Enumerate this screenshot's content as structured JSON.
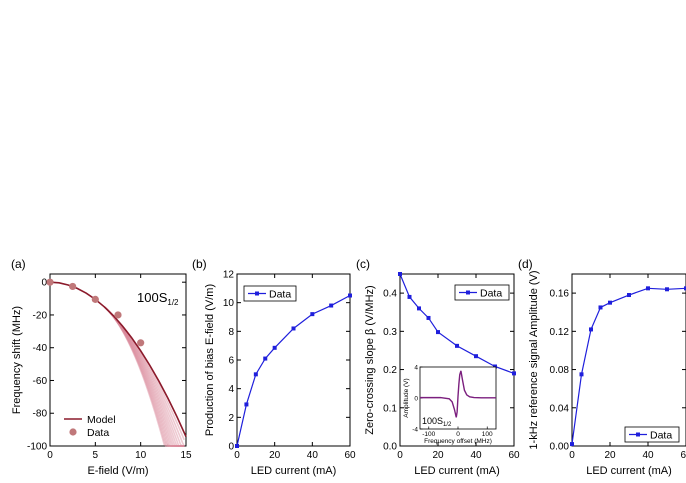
{
  "colors": {
    "model": "#8b1a2b",
    "data_dot": "#c0787a",
    "band": "#d9889a",
    "blue": "#1f1fdc",
    "inset_line": "#7b1f7e"
  },
  "chart_data": [
    {
      "panel": "(a)",
      "type": "line",
      "xlabel": "E-field (V/m)",
      "ylabel": "Frequency shift (MHz)",
      "xlim": [
        0,
        15
      ],
      "ylim": [
        -100,
        5
      ],
      "xticks": [
        "0",
        "5",
        "10",
        "15"
      ],
      "yticks": [
        "0",
        "-20",
        "-40",
        "-60",
        "-80",
        "-100"
      ],
      "annotation": "100S",
      "annotation_sub": "1/2",
      "series": [
        {
          "name": "Model",
          "x": [
            0,
            1,
            2,
            3,
            4,
            5,
            6,
            7,
            8,
            9,
            10,
            11,
            12,
            13,
            14,
            15
          ],
          "y": [
            0,
            -0.4,
            -1.7,
            -3.8,
            -6.7,
            -10.5,
            -15.1,
            -20.5,
            -26.8,
            -33.9,
            -41.9,
            -50.7,
            -60.3,
            -70.8,
            -82.1,
            -94.3
          ]
        },
        {
          "name": "Data",
          "x": [
            0,
            2.5,
            5,
            7.5,
            10
          ],
          "y": [
            0,
            -2.6,
            -10.5,
            -20,
            -37
          ]
        }
      ]
    },
    {
      "panel": "(b)",
      "type": "line",
      "xlabel": "LED current (mA)",
      "ylabel": "Production of bias E-field (V/m)",
      "xlim": [
        0,
        60
      ],
      "ylim": [
        0,
        12
      ],
      "xticks": [
        "0",
        "20",
        "40",
        "60"
      ],
      "yticks": [
        "0",
        "2",
        "4",
        "6",
        "8",
        "10",
        "12"
      ],
      "series": [
        {
          "name": "Data",
          "x": [
            0,
            5,
            10,
            15,
            20,
            30,
            40,
            50,
            60
          ],
          "y": [
            0,
            2.9,
            5.0,
            6.1,
            6.85,
            8.2,
            9.2,
            9.8,
            10.5
          ]
        }
      ]
    },
    {
      "panel": "(c)",
      "type": "line",
      "xlabel": "LED current (mA)",
      "ylabel": "Zero-crossing slope β (V/MHz)",
      "xlim": [
        0,
        60
      ],
      "ylim": [
        0,
        0.45
      ],
      "xticks": [
        "0",
        "20",
        "40",
        "60"
      ],
      "yticks": [
        "0.0",
        "0.1",
        "0.2",
        "0.3",
        "0.4"
      ],
      "series": [
        {
          "name": "Data",
          "x": [
            0,
            5,
            10,
            15,
            20,
            30,
            40,
            50,
            60
          ],
          "y": [
            0.45,
            0.39,
            0.36,
            0.335,
            0.298,
            0.262,
            0.235,
            0.208,
            0.19
          ]
        }
      ],
      "inset": {
        "xlabel": "Frequency offset (MHz)",
        "ylabel": "Amplitude (V)",
        "xlim": [
          -130,
          130
        ],
        "ylim": [
          -4,
          4
        ],
        "xticks": [
          "-100",
          "0",
          "100"
        ],
        "yticks": [
          "4",
          "0",
          "-4"
        ],
        "annotation": "100S",
        "annotation_sub": "1/2",
        "x": [
          -130,
          -60,
          -30,
          -20,
          -12,
          -6,
          -3,
          0,
          3,
          6,
          10,
          15,
          22,
          30,
          40,
          55,
          80,
          130
        ],
        "y": [
          0.05,
          0.05,
          -0.1,
          -0.5,
          -1.5,
          -2.5,
          -1.8,
          0.2,
          1.8,
          3.0,
          3.5,
          2.4,
          1.0,
          0.4,
          0.15,
          0.05,
          0.02,
          0.02
        ]
      }
    },
    {
      "panel": "(d)",
      "type": "line",
      "xlabel": "LED current (mA)",
      "ylabel": "1-kHz reference signal Amplitude (V)",
      "xlim": [
        0,
        60
      ],
      "ylim": [
        0,
        0.18
      ],
      "xticks": [
        "0",
        "20",
        "40",
        "60"
      ],
      "yticks": [
        "0.00",
        "0.04",
        "0.08",
        "0.12",
        "0.16"
      ],
      "series": [
        {
          "name": "Data",
          "x": [
            0,
            5,
            10,
            15,
            20,
            30,
            40,
            50,
            60
          ],
          "y": [
            0.002,
            0.075,
            0.122,
            0.145,
            0.15,
            0.158,
            0.165,
            0.164,
            0.165
          ]
        }
      ]
    }
  ]
}
